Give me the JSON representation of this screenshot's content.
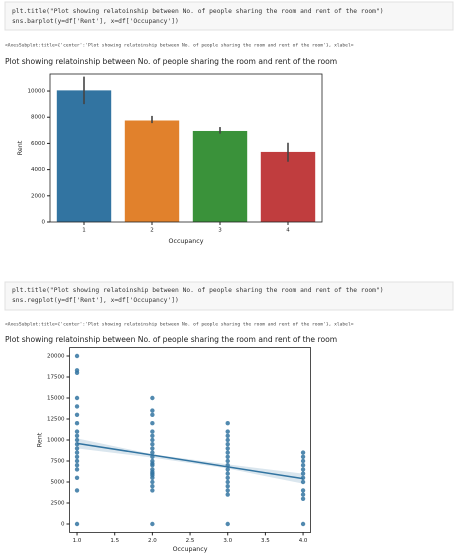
{
  "cells": [
    {
      "code": [
        "plt.title(\"Plot showing relatoinship between No. of people sharing the room and rent of the room\")",
        "sns.barplot(y=df['Rent'], x=df['Occupancy'])"
      ],
      "output": "<AxesSubplot:title={'center':'Plot showing relatoinship between No. of people sharing the room and rent of the room'}, xlabel="
    },
    {
      "code": [
        "plt.title(\"Plot showing relatoinship between No. of people sharing the room and rent of the room\")",
        "sns.regplot(y=df['Rent'], x=df['Occupancy'])"
      ],
      "output": "<AxesSubplot:title={'center':'Plot showing relatoinship between No. of people sharing the room and rent of the room'}, xlabel="
    }
  ],
  "chart_data": [
    {
      "type": "bar",
      "title": "Plot showing relatoinship between No. of people sharing the room and rent of the room",
      "xlabel": "Occupancy",
      "ylabel": "Rent",
      "categories": [
        "1",
        "2",
        "3",
        "4"
      ],
      "values": [
        10050,
        7750,
        6950,
        5350
      ],
      "ci": [
        [
          9000,
          11100
        ],
        [
          7550,
          8100
        ],
        [
          6750,
          7250
        ],
        [
          4600,
          6050
        ]
      ],
      "colors": [
        "#3274a1",
        "#e1812c",
        "#3a923a",
        "#c03d3e"
      ],
      "ylim": [
        0,
        11300
      ],
      "yticks": [
        0,
        2000,
        4000,
        6000,
        8000,
        10000
      ]
    },
    {
      "type": "scatter",
      "title": "Plot showing relatoinship between No. of people sharing the room and rent of the room",
      "xlabel": "Occupancy",
      "ylabel": "Rent",
      "color": "#3274a1",
      "x": [
        1,
        1,
        1,
        1,
        1,
        1,
        1,
        1,
        1,
        1,
        1,
        1,
        1,
        1,
        1,
        1,
        1,
        1,
        1,
        1,
        2,
        2,
        2,
        2,
        2,
        2,
        2,
        2,
        2,
        2,
        2,
        2,
        2,
        2,
        2,
        2,
        2,
        2,
        2,
        2,
        2,
        2,
        2,
        3,
        3,
        3,
        3,
        3,
        3,
        3,
        3,
        3,
        3,
        3,
        3,
        3,
        3,
        3,
        3,
        3,
        3,
        4,
        4,
        4,
        4,
        4,
        4,
        4,
        4,
        4,
        4,
        4,
        4
      ],
      "y": [
        0,
        4000,
        5500,
        6500,
        7000,
        7500,
        8000,
        8500,
        9000,
        9500,
        10000,
        10500,
        11000,
        12000,
        13000,
        14000,
        15000,
        18000,
        18300,
        20000,
        0,
        4000,
        4500,
        5000,
        5500,
        6000,
        6500,
        7000,
        7500,
        8000,
        8500,
        9000,
        9500,
        10000,
        10500,
        11000,
        12000,
        13000,
        13500,
        15000,
        5800,
        6200,
        7200,
        0,
        3500,
        4000,
        4500,
        5000,
        5500,
        6000,
        6500,
        7000,
        7500,
        8000,
        8500,
        9000,
        9500,
        10000,
        10500,
        11000,
        12000,
        0,
        3000,
        3500,
        4000,
        5000,
        6000,
        6500,
        7000,
        7500,
        8000,
        8500,
        5500
      ],
      "regression": {
        "x": [
          1,
          4
        ],
        "y": [
          9600,
          5400
        ]
      },
      "ci_band": {
        "x": [
          1,
          2,
          3,
          4
        ],
        "low": [
          9000,
          7900,
          6600,
          4800
        ],
        "high": [
          10200,
          8300,
          7100,
          6000
        ]
      },
      "xlim": [
        0.9,
        4.1
      ],
      "ylim": [
        -1000,
        21000
      ],
      "xticks": [
        {
          "value": 1,
          "label": "1.0"
        },
        1.5,
        {
          "value": 2,
          "label": "2.0"
        },
        2.5,
        {
          "value": 3,
          "label": "3.0"
        },
        3.5,
        {
          "value": 4,
          "label": "4.0"
        }
      ],
      "yticks": [
        0,
        2500,
        5000,
        7500,
        10000,
        12500,
        15000,
        17500,
        20000
      ]
    }
  ]
}
